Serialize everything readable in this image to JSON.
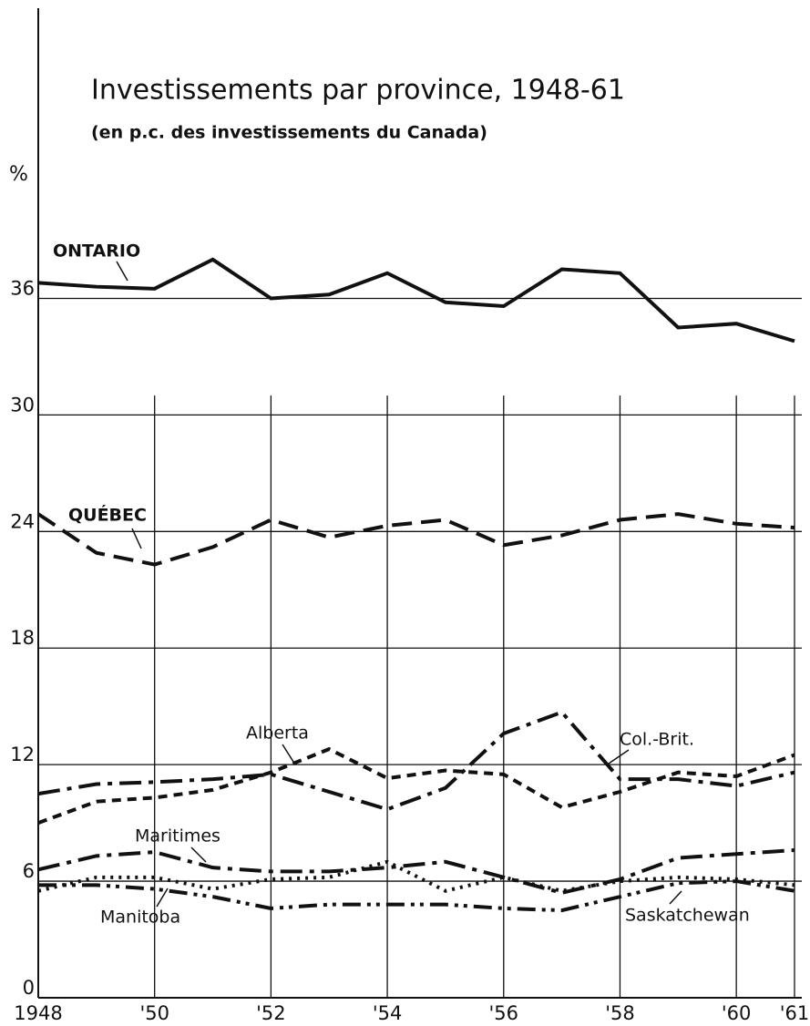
{
  "chart_data": {
    "type": "line",
    "title": "Investissements par province, 1948-61",
    "subtitle": "(en p.c. des investissements du Canada)",
    "ylabel": "%",
    "x": [
      1948,
      1949,
      1950,
      1951,
      1952,
      1953,
      1954,
      1955,
      1956,
      1957,
      1958,
      1959,
      1960,
      1961
    ],
    "xlim": [
      1948,
      1961
    ],
    "xticks": [
      1948,
      {
        "value": 1950,
        "label": "'50"
      },
      {
        "value": 1952,
        "label": "'52"
      },
      {
        "value": 1954,
        "label": "'54"
      },
      {
        "value": 1956,
        "label": "'56"
      },
      {
        "value": 1958,
        "label": "'58"
      },
      {
        "value": 1960,
        "label": "'60"
      },
      {
        "value": 1961,
        "label": "'61"
      }
    ],
    "ylim": [
      0,
      50
    ],
    "yticks": [
      0,
      6,
      12,
      18,
      24,
      30,
      36
    ],
    "grid": true,
    "series": [
      {
        "name": "ONTARIO",
        "color": "#111",
        "style": "solid",
        "values": [
          36.8,
          36.6,
          36.5,
          38.0,
          36.0,
          36.2,
          37.3,
          35.8,
          35.6,
          37.5,
          37.3,
          34.5,
          34.7,
          33.8
        ]
      },
      {
        "name": "QUÉBEC",
        "color": "#111",
        "style": "dashed",
        "values": [
          24.9,
          22.9,
          22.3,
          23.2,
          24.6,
          23.7,
          24.3,
          24.6,
          23.3,
          23.8,
          24.6,
          24.9,
          24.4,
          24.2
        ]
      },
      {
        "name": "Col.-Brit.",
        "color": "#111",
        "style": "dashdot",
        "values": [
          10.5,
          11.0,
          11.1,
          11.25,
          11.5,
          10.6,
          9.7,
          10.8,
          13.6,
          14.7,
          11.25,
          11.25,
          10.9,
          11.6
        ]
      },
      {
        "name": "Alberta",
        "color": "#111",
        "style": "shortdash",
        "values": [
          9.0,
          10.1,
          10.3,
          10.7,
          11.6,
          12.8,
          11.3,
          11.7,
          11.5,
          9.8,
          10.6,
          11.6,
          11.4,
          12.5
        ]
      },
      {
        "name": "Maritimes",
        "color": "#111",
        "style": "dashdot",
        "values": [
          6.6,
          7.3,
          7.5,
          6.7,
          6.5,
          6.5,
          6.7,
          7.0,
          6.2,
          5.4,
          6.1,
          7.2,
          7.4,
          7.6
        ]
      },
      {
        "name": "Saskatchewan",
        "color": "#111",
        "style": "dotted",
        "values": [
          5.5,
          6.2,
          6.2,
          5.6,
          6.1,
          6.2,
          7.0,
          5.5,
          6.2,
          5.5,
          6.0,
          6.2,
          6.1,
          5.8
        ]
      },
      {
        "name": "Manitoba",
        "color": "#111",
        "style": "dashdotdot",
        "values": [
          5.8,
          5.8,
          5.6,
          5.2,
          4.6,
          4.8,
          4.8,
          4.8,
          4.6,
          4.5,
          5.2,
          5.9,
          6.0,
          5.5
        ]
      }
    ]
  }
}
